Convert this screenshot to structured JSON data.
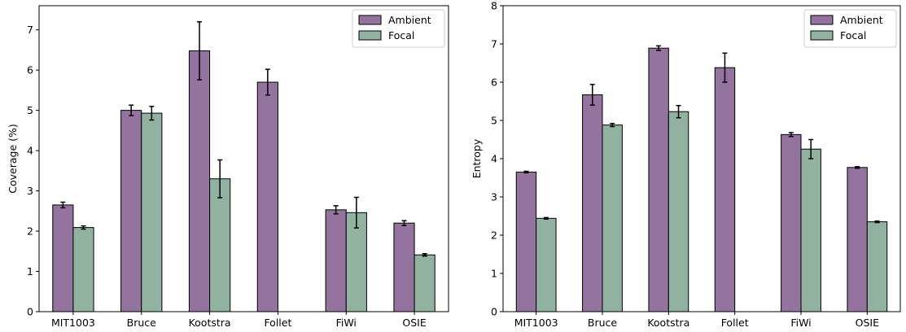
{
  "colors": {
    "ambient": "#94739f",
    "focal": "#91b2a1",
    "edge": "#000000"
  },
  "chart_data": [
    {
      "type": "bar",
      "title": "",
      "xlabel": "",
      "ylabel": "Coverage (%)",
      "ylim": [
        0,
        7.6
      ],
      "yticks": [
        "0",
        "1",
        "2",
        "3",
        "4",
        "5",
        "6",
        "7"
      ],
      "categories": [
        "MIT1003",
        "Bruce",
        "Kootstra",
        "Follet",
        "FiWi",
        "OSIE"
      ],
      "legend_position": "top-right",
      "series": [
        {
          "name": "Ambient",
          "color_key": "ambient",
          "values": [
            2.65,
            5.0,
            6.48,
            5.7,
            2.53,
            2.2
          ],
          "errors": [
            0.07,
            0.13,
            0.72,
            0.32,
            0.1,
            0.06
          ]
        },
        {
          "name": "Focal",
          "color_key": "focal",
          "values": [
            2.09,
            4.93,
            3.3,
            0.0,
            2.46,
            1.41
          ],
          "errors": [
            0.04,
            0.17,
            0.47,
            0.0,
            0.38,
            0.03
          ]
        }
      ]
    },
    {
      "type": "bar",
      "title": "",
      "xlabel": "",
      "ylabel": "Entropy",
      "ylim": [
        0,
        8
      ],
      "yticks": [
        "0",
        "1",
        "2",
        "3",
        "4",
        "5",
        "6",
        "7",
        "8"
      ],
      "categories": [
        "MIT1003",
        "Bruce",
        "Kootstra",
        "Follet",
        "FiWi",
        "OSIE"
      ],
      "legend_position": "top-right",
      "series": [
        {
          "name": "Ambient",
          "color_key": "ambient",
          "values": [
            3.65,
            5.67,
            6.89,
            6.38,
            4.63,
            3.77
          ],
          "errors": [
            0.02,
            0.27,
            0.06,
            0.38,
            0.05,
            0.02
          ]
        },
        {
          "name": "Focal",
          "color_key": "focal",
          "values": [
            2.44,
            4.88,
            5.23,
            0.0,
            4.25,
            2.35
          ],
          "errors": [
            0.02,
            0.04,
            0.16,
            0.0,
            0.25,
            0.02
          ]
        }
      ]
    }
  ]
}
